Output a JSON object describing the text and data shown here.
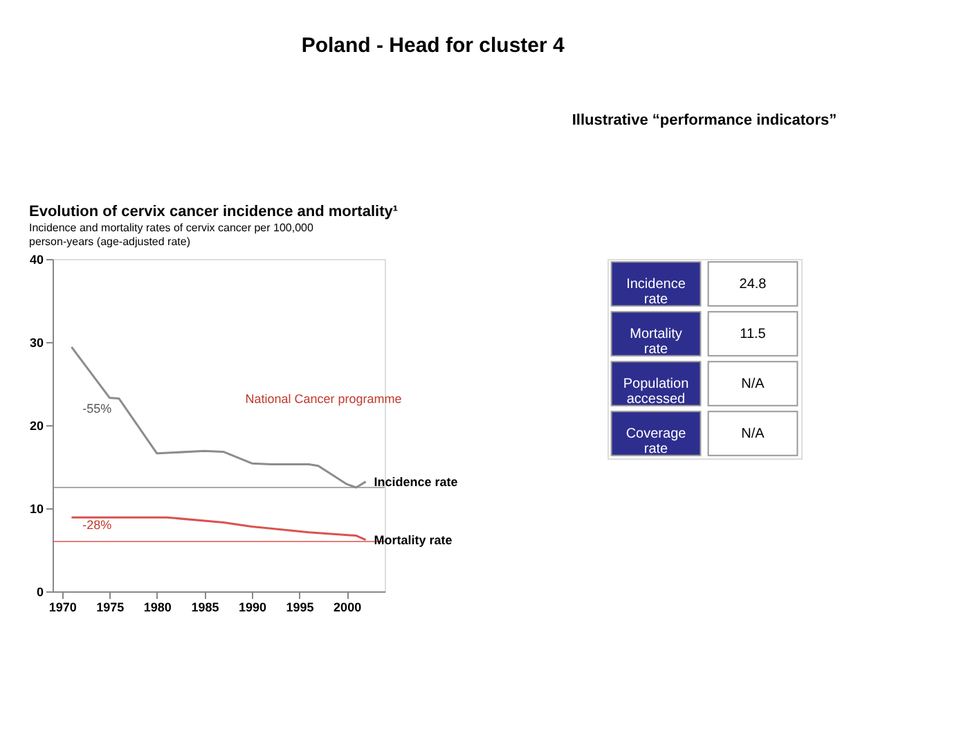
{
  "chart_data": [
    {
      "type": "other",
      "title": "Poland - Head for cluster 4"
    },
    {
      "type": "line",
      "title": "Evolution of cervix cancer incidence and mortality¹",
      "subtitle": "Incidence and mortality rates of cervix cancer per 100,000 person-years (age-adjusted rate)",
      "series": [
        {
          "name": "Incidence rate",
          "color": "#8c8c8c",
          "x": [
            1971,
            1975,
            1976,
            1980,
            1985,
            1987,
            1990,
            1992,
            1996,
            1997,
            2000,
            2001,
            2002
          ],
          "values": [
            29.4,
            23.3,
            23.2,
            16.6,
            16.9,
            16.8,
            15.4,
            15.3,
            15.3,
            15.1,
            12.9,
            12.5,
            13.2
          ]
        },
        {
          "name": "Mortality rate",
          "color": "#d9534f",
          "x": [
            1971,
            1981,
            1987,
            1990,
            1996,
            2001,
            2002
          ],
          "values": [
            8.9,
            8.9,
            8.3,
            7.8,
            7.1,
            6.7,
            6.2
          ]
        }
      ],
      "xlim": [
        1969,
        2004
      ],
      "xticks": [
        1970,
        1975,
        1980,
        1985,
        1990,
        1995,
        2000
      ],
      "ylim": [
        0,
        40
      ],
      "yticks": [
        0,
        10,
        20,
        30,
        40
      ],
      "grid": false,
      "ref_lines": [
        {
          "axis": "y",
          "value": 12.5,
          "color": "#8c8c8c"
        },
        {
          "axis": "y",
          "value": 6.0,
          "color": "#d9534f"
        }
      ],
      "annotations": [
        "-55%",
        "-28%",
        "National Cancer programme"
      ]
    },
    {
      "type": "other",
      "title": "Illustrative “performance indicators”",
      "annotations": [
        "Incidence rate",
        "24.8",
        "Mortality rate",
        "11.5",
        "Population accessed",
        "N/A",
        "Coverage rate",
        "N/A"
      ]
    }
  ]
}
